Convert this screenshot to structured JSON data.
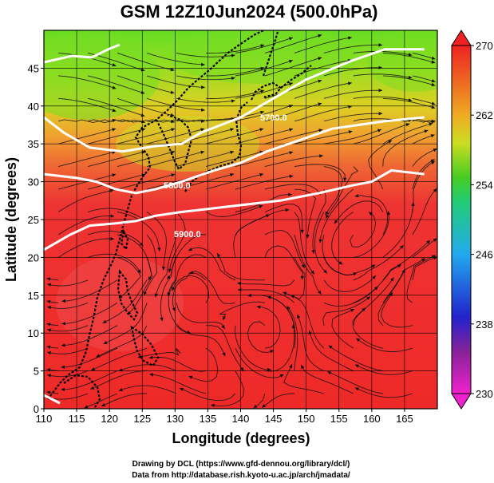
{
  "title": "GSM 12Z10Jun2024 (500.0hPa)",
  "xlabel": "Longitude (degrees)",
  "ylabel": "Latitude (degrees)",
  "credits": [
    "Drawing by DCL (https://www.gfd-dennou.org/library/dcl/)",
    "Data from http://database.rish.kyoto-u.ac.jp/arch/jmadata/"
  ],
  "chart_data": {
    "type": "heatmap",
    "title": "GSM 12Z10Jun2024 (500.0hPa)",
    "xlabel": "Longitude (degrees)",
    "ylabel": "Latitude (degrees)",
    "xlim": [
      110,
      170
    ],
    "ylim": [
      0,
      50
    ],
    "x_ticks": [
      110,
      115,
      120,
      125,
      130,
      135,
      140,
      145,
      150,
      155,
      160,
      165
    ],
    "y_ticks": [
      0,
      5,
      10,
      15,
      20,
      25,
      30,
      35,
      40,
      45
    ],
    "grid": true,
    "colorbar": {
      "range": [
        230,
        270
      ],
      "ticks": [
        230,
        238,
        246,
        254,
        262,
        270
      ],
      "colors": [
        "#ee22cc",
        "#2222cc",
        "#22aaee",
        "#22cc44",
        "#eedd22",
        "#ee2222"
      ]
    },
    "contour_labels": [
      "5700.0",
      "5800.0",
      "5900.0"
    ],
    "contours": [
      {
        "label": "5700.0",
        "points": [
          [
            110,
            38.5
          ],
          [
            113,
            36.5
          ],
          [
            117,
            34.5
          ],
          [
            122,
            34
          ],
          [
            127,
            34.7
          ],
          [
            131,
            35
          ],
          [
            134,
            36.5
          ],
          [
            140,
            38.5
          ],
          [
            145,
            41
          ],
          [
            150,
            43.5
          ],
          [
            157,
            46
          ],
          [
            162,
            47.5
          ],
          [
            168,
            47.5
          ]
        ]
      },
      {
        "label": "5800.0",
        "points": [
          [
            110,
            31
          ],
          [
            115,
            30.5
          ],
          [
            118,
            30
          ],
          [
            121,
            29
          ],
          [
            124,
            28.5
          ],
          [
            127,
            29
          ],
          [
            131,
            30
          ],
          [
            136,
            31.5
          ],
          [
            140,
            32.5
          ],
          [
            144,
            34
          ],
          [
            149,
            35.5
          ],
          [
            154,
            37
          ],
          [
            158,
            37.5
          ],
          [
            162,
            38
          ],
          [
            168,
            38.5
          ]
        ]
      },
      {
        "label": "5900.0",
        "points": [
          [
            110,
            21
          ],
          [
            114,
            23
          ],
          [
            117,
            24.2
          ],
          [
            121,
            24.5
          ],
          [
            124,
            24.8
          ],
          [
            127,
            25.5
          ],
          [
            131,
            26
          ],
          [
            136,
            26.5
          ],
          [
            141,
            27
          ],
          [
            146,
            27.5
          ],
          [
            152,
            28.5
          ],
          [
            157,
            29.5
          ],
          [
            160,
            30
          ],
          [
            163,
            31.5
          ],
          [
            168,
            31
          ]
        ]
      }
    ],
    "temperature_regions": [
      {
        "description_value": 256,
        "region": "north of 5700 contour"
      },
      {
        "description_value": 262,
        "region": "between 5700 and 5800 contours"
      },
      {
        "description_value": 268,
        "region": "south of 5800 contour"
      }
    ]
  }
}
